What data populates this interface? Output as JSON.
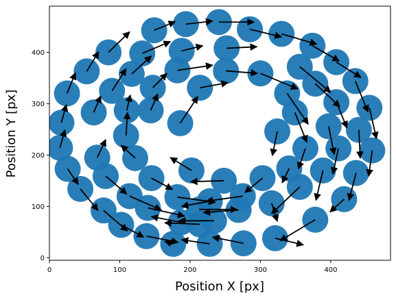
{
  "chart_data": {
    "type": "scatter",
    "title": "",
    "xlabel": "Position X [px]",
    "ylabel": "Position Y [px]",
    "xlim": [
      0,
      485
    ],
    "ylim": [
      -5,
      490
    ],
    "xticks": [
      0,
      100,
      200,
      300,
      400
    ],
    "yticks": [
      0,
      100,
      200,
      300,
      400
    ],
    "grid": false,
    "legend": "none",
    "marker_color": "#1f77b4",
    "arrow_color": "#000000",
    "series": [
      {
        "marker": "circle",
        "points": [
          {
            "x": 241,
            "y": 459,
            "u": 50,
            "v": 0
          },
          {
            "x": 194,
            "y": 455,
            "u": 38,
            "v": 6
          },
          {
            "x": 285,
            "y": 445,
            "u": 45,
            "v": -15
          },
          {
            "x": 149,
            "y": 443,
            "u": 30,
            "v": 17
          },
          {
            "x": 330,
            "y": 436,
            "u": 50,
            "v": -20
          },
          {
            "x": 374,
            "y": 413,
            "u": 38,
            "v": -30
          },
          {
            "x": 252,
            "y": 408,
            "u": 43,
            "v": 3
          },
          {
            "x": 188,
            "y": 403,
            "u": 30,
            "v": 10
          },
          {
            "x": 84,
            "y": 400,
            "u": 30,
            "v": 40
          },
          {
            "x": 132,
            "y": 398,
            "u": 40,
            "v": 23
          },
          {
            "x": 408,
            "y": 381,
            "u": 35,
            "v": -30
          },
          {
            "x": 356,
            "y": 372,
            "u": 44,
            "v": -50
          },
          {
            "x": 182,
            "y": 365,
            "u": 50,
            "v": 10
          },
          {
            "x": 251,
            "y": 364,
            "u": 45,
            "v": -5
          },
          {
            "x": 53,
            "y": 363,
            "u": 17,
            "v": 38
          },
          {
            "x": 117,
            "y": 358,
            "u": 28,
            "v": 35
          },
          {
            "x": 300,
            "y": 359,
            "u": 53,
            "v": -30
          },
          {
            "x": 435,
            "y": 344,
            "u": 18,
            "v": -60
          },
          {
            "x": 378,
            "y": 339,
            "u": 35,
            "v": -45
          },
          {
            "x": 147,
            "y": 331,
            "u": 20,
            "v": 28
          },
          {
            "x": 214,
            "y": 331,
            "u": 40,
            "v": 10
          },
          {
            "x": 89,
            "y": 325,
            "u": 20,
            "v": 43
          },
          {
            "x": 25,
            "y": 320,
            "u": 12,
            "v": 40
          },
          {
            "x": 338,
            "y": 320,
            "u": 30,
            "v": -60
          },
          {
            "x": 408,
            "y": 303,
            "u": 15,
            "v": -50
          },
          {
            "x": 455,
            "y": 292,
            "u": 10,
            "v": -60
          },
          {
            "x": 110,
            "y": 287,
            "u": 5,
            "v": 30
          },
          {
            "x": 63,
            "y": 283,
            "u": 10,
            "v": 32
          },
          {
            "x": 349,
            "y": 283,
            "u": 17,
            "v": -58
          },
          {
            "x": 144,
            "y": 287,
            "u": 10,
            "v": 32
          },
          {
            "x": 17,
            "y": 263,
            "u": 7,
            "v": 35
          },
          {
            "x": 186,
            "y": 262,
            "u": 25,
            "v": 52
          },
          {
            "x": 397,
            "y": 256,
            "u": 8,
            "v": -55
          },
          {
            "x": 440,
            "y": 249,
            "u": 2,
            "v": -55
          },
          {
            "x": 324,
            "y": 246,
            "u": -7,
            "v": -47
          },
          {
            "x": 109,
            "y": 238,
            "u": 2,
            "v": 45
          },
          {
            "x": 364,
            "y": 213,
            "u": -10,
            "v": -40
          },
          {
            "x": 411,
            "y": 213,
            "u": -8,
            "v": -50
          },
          {
            "x": 15,
            "y": 214,
            "u": 7,
            "v": 35
          },
          {
            "x": 459,
            "y": 209,
            "u": -5,
            "v": -50
          },
          {
            "x": 68,
            "y": 195,
            "u": 12,
            "v": 35
          },
          {
            "x": 122,
            "y": 194,
            "u": -20,
            "v": 25
          },
          {
            "x": 202,
            "y": 170,
            "u": -30,
            "v": 25
          },
          {
            "x": 26,
            "y": 173,
            "u": 15,
            "v": -30
          },
          {
            "x": 341,
            "y": 174,
            "u": -10,
            "v": -28
          },
          {
            "x": 389,
            "y": 170,
            "u": -10,
            "v": -58
          },
          {
            "x": 80,
            "y": 159,
            "u": 30,
            "v": -35
          },
          {
            "x": 436,
            "y": 165,
            "u": -10,
            "v": -53
          },
          {
            "x": 145,
            "y": 155,
            "u": 30,
            "v": -22
          },
          {
            "x": 303,
            "y": 155,
            "u": -25,
            "v": -28
          },
          {
            "x": 248,
            "y": 150,
            "u": -47,
            "v": -2
          },
          {
            "x": 44,
            "y": 134,
            "u": 25,
            "v": -42
          },
          {
            "x": 356,
            "y": 138,
            "u": -40,
            "v": -52
          },
          {
            "x": 114,
            "y": 120,
            "u": 45,
            "v": -27
          },
          {
            "x": 182,
            "y": 118,
            "u": 54,
            "v": -10
          },
          {
            "x": 275,
            "y": 120,
            "u": -52,
            "v": -10
          },
          {
            "x": 419,
            "y": 114,
            "u": -20,
            "v": -25
          },
          {
            "x": 228,
            "y": 110,
            "u": -40,
            "v": -10
          },
          {
            "x": 316,
            "y": 106,
            "u": 8,
            "v": -35
          },
          {
            "x": 77,
            "y": 92,
            "u": 34,
            "v": -40
          },
          {
            "x": 140,
            "y": 97,
            "u": 52,
            "v": -16
          },
          {
            "x": 213,
            "y": 94,
            "u": 54,
            "v": 0
          },
          {
            "x": 269,
            "y": 93,
            "u": -50,
            "v": -5
          },
          {
            "x": 378,
            "y": 74,
            "u": -50,
            "v": -41
          },
          {
            "x": 187,
            "y": 69,
            "u": -42,
            "v": 11
          },
          {
            "x": 214,
            "y": 65,
            "u": -50,
            "v": 3
          },
          {
            "x": 102,
            "y": 64,
            "u": 32,
            "v": -24
          },
          {
            "x": 138,
            "y": 42,
            "u": 45,
            "v": -12
          },
          {
            "x": 321,
            "y": 38,
            "u": 40,
            "v": -13
          },
          {
            "x": 176,
            "y": 27,
            "u": -12,
            "v": 5
          },
          {
            "x": 228,
            "y": 27,
            "u": -40,
            "v": 8
          },
          {
            "x": 276,
            "y": 28,
            "u": -44,
            "v": 12
          },
          {
            "x": 234,
            "y": 72,
            "u": -50,
            "v": 0
          }
        ]
      }
    ]
  }
}
